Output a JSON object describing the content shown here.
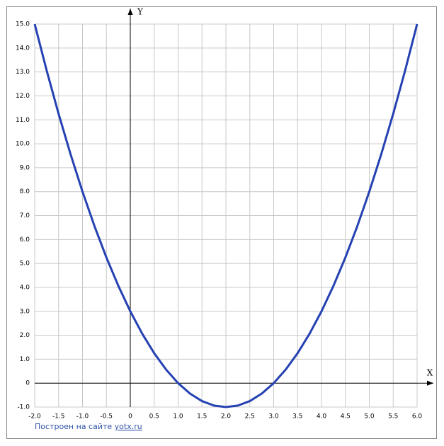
{
  "chart_data": {
    "type": "line",
    "xlabel": "X",
    "ylabel": "Y",
    "x": [
      -2,
      -1.75,
      -1.5,
      -1.25,
      -1,
      -0.75,
      -0.5,
      -0.25,
      0,
      0.25,
      0.5,
      0.75,
      1,
      1.25,
      1.5,
      1.75,
      2,
      2.25,
      2.5,
      2.75,
      3,
      3.25,
      3.5,
      3.75,
      4,
      4.25,
      4.5,
      4.75,
      5,
      5.25,
      5.5,
      5.75,
      6
    ],
    "series": [
      {
        "color": "#2541b2",
        "values": [
          15,
          13.0625,
          11.25,
          9.5625,
          8,
          6.5625,
          5.25,
          4.0625,
          3,
          2.0625,
          1.25,
          0.5625,
          0,
          -0.4375,
          -0.75,
          -0.9375,
          -1,
          -0.9375,
          -0.75,
          -0.4375,
          0,
          0.5625,
          1.25,
          2.0625,
          3,
          4.0625,
          5.25,
          6.5625,
          8,
          9.5625,
          11.25,
          13.0625,
          15
        ]
      }
    ],
    "xlim": [
      -2,
      6
    ],
    "ylim": [
      -1,
      15
    ],
    "xticks": [
      {
        "value": -2,
        "label": "-2.0"
      },
      {
        "value": -1.5,
        "label": "-1.5"
      },
      {
        "value": -1,
        "label": "-1.0"
      },
      {
        "value": -0.5,
        "label": "-0.5"
      },
      0,
      0.5,
      {
        "value": 1,
        "label": "1.0"
      },
      1.5,
      {
        "value": 2,
        "label": "2.0"
      },
      2.5,
      {
        "value": 3,
        "label": "3.0"
      },
      3.5,
      {
        "value": 4,
        "label": "4.0"
      },
      4.5,
      {
        "value": 5,
        "label": "5.0"
      },
      5.5,
      {
        "value": 6,
        "label": "6.0"
      }
    ],
    "yticks": [
      {
        "value": -1,
        "label": "-1.0"
      },
      0,
      {
        "value": 1,
        "label": "1.0"
      },
      {
        "value": 2,
        "label": "2.0"
      },
      {
        "value": 3,
        "label": "3.0"
      },
      {
        "value": 4,
        "label": "4.0"
      },
      {
        "value": 5,
        "label": "5.0"
      },
      {
        "value": 6,
        "label": "6.0"
      },
      {
        "value": 7,
        "label": "7.0"
      },
      {
        "value": 8,
        "label": "8.0"
      },
      {
        "value": 9,
        "label": "9.0"
      },
      {
        "value": 10,
        "label": "10.0"
      },
      {
        "value": 11,
        "label": "11.0"
      },
      {
        "value": 12,
        "label": "12.0"
      },
      {
        "value": 13,
        "label": "13.0"
      },
      {
        "value": 14,
        "label": "14.0"
      },
      {
        "value": 15,
        "label": "15.0"
      }
    ],
    "grid": true
  },
  "footer": {
    "text": "Построен на сайте",
    "link": "yotx.ru"
  }
}
